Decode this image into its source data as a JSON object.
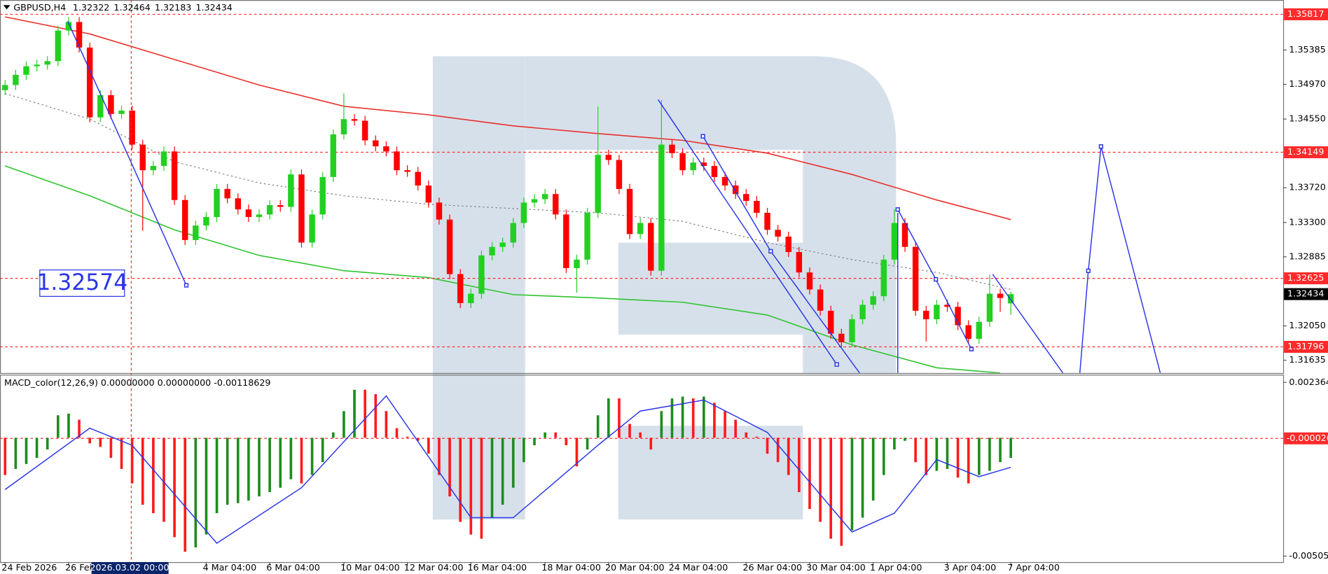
{
  "chart_data": [
    {
      "type": "candlestick",
      "title": "GBPUSD,H4",
      "categories": [
        "24 Feb 2026",
        null,
        null,
        null,
        null,
        null,
        "26 Feb 04:00",
        null,
        null,
        null,
        null,
        null,
        null,
        null,
        null,
        null,
        null,
        null,
        null,
        "4 Mar 04:00",
        null,
        null,
        null,
        null,
        null,
        "6 Mar 04:00",
        null,
        null,
        null,
        null,
        null,
        null,
        "10 Mar 04:00",
        null,
        null,
        null,
        null,
        null,
        "12 Mar 04:00",
        null,
        null,
        null,
        null,
        null,
        "16 Mar 04:00",
        null,
        null,
        null,
        null,
        null,
        null,
        "18 Mar 04:00",
        null,
        null,
        null,
        null,
        null,
        "20 Mar 04:00",
        null,
        null,
        null,
        null,
        null,
        "24 Mar 04:00",
        null,
        null,
        null,
        null,
        null,
        null,
        "26 Mar 04:00",
        null,
        null,
        null,
        null,
        null,
        "30 Mar 04:00",
        null,
        null,
        null,
        null,
        null,
        "1 Apr 04:00",
        null,
        null,
        null,
        null,
        null,
        null,
        "3 Apr 04:00",
        null,
        null,
        null,
        null,
        null,
        "7 Apr 04:00"
      ],
      "open": [
        1.349,
        1.34962,
        1.35086,
        1.35189,
        1.35209,
        1.35251,
        1.35621,
        1.35724,
        1.35415,
        1.34571,
        1.34839,
        1.34612,
        1.34653,
        1.34241,
        1.33932,
        1.33984,
        1.34159,
        1.33572,
        1.33088,
        1.33263,
        1.33366,
        1.33706,
        1.33592,
        1.33458,
        1.33366,
        1.33397,
        1.3351,
        1.33489,
        1.33881,
        1.33057,
        1.33397,
        1.3385,
        1.34365,
        1.3455,
        1.3453,
        1.34293,
        1.34221,
        1.34159,
        1.33932,
        1.33912,
        1.33747,
        1.33541,
        1.33335,
        1.32676,
        1.32325,
        1.32439,
        1.32902,
        1.33005,
        1.33057,
        1.33294,
        1.33541,
        1.33582,
        1.33644,
        1.33397,
        1.32748,
        1.32851,
        1.33417,
        1.34118,
        1.34056,
        1.33706,
        1.3316,
        1.33294,
        1.32717,
        1.34241,
        1.34138,
        1.33932,
        1.34025,
        1.33984,
        1.3385,
        1.33747,
        1.33644,
        1.33561,
        1.33417,
        1.33211,
        1.33129,
        1.32943,
        1.32696,
        1.3249,
        1.32233,
        1.31955,
        1.31852,
        1.3213,
        1.32305,
        1.32408,
        1.32851,
        1.33294,
        1.33005,
        1.32233,
        1.3213,
        1.32305,
        1.3228,
        1.32058,
        1.31893,
        1.32099,
        1.32439,
        1.32322
      ],
      "high": [
        1.35022,
        1.35146,
        1.35249,
        1.35269,
        1.35311,
        1.35681,
        1.35784,
        1.35784,
        1.35475,
        1.34899,
        1.34899,
        1.34713,
        1.34713,
        1.34301,
        1.34044,
        1.34219,
        1.34219,
        1.33632,
        1.33323,
        1.33426,
        1.33766,
        1.33766,
        1.33652,
        1.33518,
        1.33457,
        1.3357,
        1.3357,
        1.33941,
        1.33941,
        1.33457,
        1.3391,
        1.34425,
        1.3486,
        1.3461,
        1.3459,
        1.34353,
        1.34281,
        1.34219,
        1.33992,
        1.33972,
        1.33807,
        1.33601,
        1.33395,
        1.32736,
        1.32499,
        1.32962,
        1.33065,
        1.33117,
        1.33354,
        1.33601,
        1.33642,
        1.33704,
        1.33704,
        1.33457,
        1.32911,
        1.33477,
        1.347,
        1.34178,
        1.34116,
        1.33766,
        1.33354,
        1.33354,
        1.3478,
        1.34301,
        1.34198,
        1.34085,
        1.34085,
        1.34044,
        1.3391,
        1.33807,
        1.33704,
        1.33621,
        1.33477,
        1.33271,
        1.33189,
        1.33003,
        1.32756,
        1.3255,
        1.32293,
        1.32015,
        1.3219,
        1.32365,
        1.32468,
        1.32911,
        1.3346,
        1.33354,
        1.33065,
        1.32293,
        1.32365,
        1.32365,
        1.3234,
        1.32118,
        1.32159,
        1.3267,
        1.32499,
        1.32464
      ],
      "low": [
        1.3484,
        1.34902,
        1.35026,
        1.35129,
        1.35149,
        1.35191,
        1.35561,
        1.35355,
        1.34511,
        1.34511,
        1.34552,
        1.34552,
        1.34181,
        1.332,
        1.33872,
        1.33924,
        1.33512,
        1.33028,
        1.33028,
        1.33203,
        1.33306,
        1.33532,
        1.33398,
        1.33306,
        1.33306,
        1.33337,
        1.33429,
        1.33429,
        1.32997,
        1.32997,
        1.33337,
        1.3379,
        1.34305,
        1.3447,
        1.34233,
        1.34161,
        1.34099,
        1.33872,
        1.33852,
        1.33687,
        1.33481,
        1.33275,
        1.32616,
        1.32265,
        1.32265,
        1.32379,
        1.32842,
        1.32945,
        1.32997,
        1.33234,
        1.33481,
        1.33522,
        1.33337,
        1.32688,
        1.3245,
        1.32791,
        1.33357,
        1.33996,
        1.33646,
        1.331,
        1.331,
        1.32657,
        1.32657,
        1.34078,
        1.33872,
        1.33872,
        1.33924,
        1.3379,
        1.33687,
        1.33584,
        1.33501,
        1.33357,
        1.33151,
        1.33069,
        1.32883,
        1.32636,
        1.3243,
        1.32173,
        1.31895,
        1.31792,
        1.31792,
        1.3207,
        1.32245,
        1.32348,
        1.32791,
        1.32945,
        1.32173,
        1.3186,
        1.3207,
        1.3222,
        1.31998,
        1.31833,
        1.31833,
        1.32039,
        1.3222,
        1.32183
      ],
      "close": [
        1.34962,
        1.35086,
        1.35189,
        1.35209,
        1.35251,
        1.35621,
        1.35724,
        1.35415,
        1.34571,
        1.34839,
        1.34612,
        1.34653,
        1.34241,
        1.33932,
        1.33984,
        1.34159,
        1.33572,
        1.33088,
        1.33263,
        1.33366,
        1.33706,
        1.33592,
        1.33458,
        1.33366,
        1.33397,
        1.3351,
        1.33489,
        1.33881,
        1.33057,
        1.33397,
        1.3385,
        1.34365,
        1.3455,
        1.3453,
        1.34293,
        1.34221,
        1.34159,
        1.33932,
        1.33912,
        1.33747,
        1.33541,
        1.33335,
        1.32676,
        1.32325,
        1.32439,
        1.32902,
        1.33005,
        1.33057,
        1.33294,
        1.33541,
        1.33582,
        1.33644,
        1.33397,
        1.32748,
        1.32851,
        1.33417,
        1.34118,
        1.34056,
        1.33706,
        1.3316,
        1.33294,
        1.32717,
        1.34241,
        1.34138,
        1.33932,
        1.34025,
        1.33984,
        1.3385,
        1.33747,
        1.33644,
        1.33561,
        1.33417,
        1.33211,
        1.33129,
        1.32943,
        1.32696,
        1.3249,
        1.32233,
        1.31955,
        1.31852,
        1.3213,
        1.32305,
        1.32408,
        1.32851,
        1.33294,
        1.33005,
        1.32233,
        1.3213,
        1.32305,
        1.3228,
        1.32058,
        1.31893,
        1.32099,
        1.32439,
        1.32387,
        1.32434
      ],
      "up_color": "#22d022",
      "down_color": "#ff0000",
      "ylim": [
        1.3148,
        1.3599
      ],
      "yticks": [
        1.35385,
        {
          "value": 1.3497,
          "label": "1.34970"
        },
        {
          "value": 1.3455,
          "label": "1.34550"
        },
        {
          "value": 1.3372,
          "label": "1.33720"
        },
        {
          "value": 1.333,
          "label": "1.33300"
        },
        1.32885,
        {
          "value": 1.3205,
          "label": "1.32050"
        },
        1.31635
      ],
      "levels": [
        1.35817,
        1.34149,
        1.32625,
        1.31796
      ],
      "level_color": "#ff2a2a",
      "overlays": [
        {
          "color": "#e8302a",
          "x": [
            0,
            8,
            16,
            24,
            32,
            40,
            48,
            56,
            64,
            72,
            80,
            88,
            95
          ],
          "values": [
            1.35786,
            1.3558,
            1.35271,
            1.34962,
            1.34705,
            1.34602,
            1.34468,
            1.34375,
            1.34293,
            1.34138,
            1.33881,
            1.33572,
            1.33335
          ]
        },
        {
          "color": "#2ec42e",
          "x": [
            0,
            8,
            16,
            24,
            32,
            40,
            48,
            56,
            64,
            72,
            80,
            88,
            94
          ],
          "values": [
            1.33984,
            1.33623,
            1.33211,
            1.32902,
            1.32717,
            1.32634,
            1.32428,
            1.32387,
            1.32336,
            1.32181,
            1.31821,
            1.31543,
            1.31481
          ]
        },
        {
          "color": "#808080",
          "dotted": true,
          "x": [
            0,
            8,
            16,
            24,
            32,
            40,
            48,
            56,
            64,
            72,
            80,
            88,
            95
          ],
          "values": [
            1.34859,
            1.3455,
            1.34035,
            1.33778,
            1.33623,
            1.3352,
            1.33469,
            1.33417,
            1.33314,
            1.33057,
            1.32851,
            1.32696,
            1.3249
          ]
        }
      ],
      "annotation": "1.32574",
      "crosshair_label": "2026.03.02 00:00"
    },
    {
      "type": "macd",
      "title": "MACD_color(12,26,9) 0.00000000 0.00000000 -0.00118629",
      "values": [
        -0.00159,
        -0.00133,
        -0.00112,
        -0.00086,
        -0.0005,
        0.00096,
        0.00103,
        0.00077,
        -0.00024,
        -0.00039,
        -0.00086,
        -0.00133,
        -0.00195,
        -0.00286,
        -0.00322,
        -0.00359,
        -0.00424,
        -0.00486,
        -0.00468,
        -0.00413,
        -0.00322,
        -0.00286,
        -0.00279,
        -0.00268,
        -0.0025,
        -0.00232,
        -0.00213,
        -0.00177,
        -0.00195,
        -0.00159,
        -0.00104,
        0.00023,
        0.00114,
        0.00205,
        0.00205,
        0.00186,
        0.00114,
        0.00041,
        5e-05,
        -0.00013,
        -0.00068,
        -0.00159,
        -0.0025,
        -0.00359,
        -0.00413,
        -0.00431,
        -0.00341,
        -0.00286,
        -0.00213,
        -0.00104,
        -0.00032,
        0.00023,
        0.00023,
        -0.00032,
        -0.00122,
        -0.0005,
        0.00096,
        0.00168,
        0.00168,
        0.00059,
        0.00023,
        -0.0005,
        0.00114,
        0.00168,
        0.00176,
        0.00168,
        0.00176,
        0.0015,
        0.00114,
        0.00077,
        0.00023,
        5e-05,
        -0.00068,
        -0.00104,
        -0.00159,
        -0.00232,
        -0.00304,
        -0.00359,
        -0.00431,
        -0.00461,
        -0.00395,
        -0.00341,
        -0.00268,
        -0.00159,
        -0.0005,
        -0.00013,
        -0.00104,
        -0.00159,
        -0.00141,
        -0.00133,
        -0.0017,
        -0.00195,
        -0.00159,
        -0.00141,
        -0.00104,
        -0.00086
      ],
      "rising_color": "#1e8c1e",
      "falling_color": "#ff1a1a",
      "signal": {
        "color": "#2a35e6",
        "x": [
          0,
          8,
          12,
          20,
          28,
          36,
          44,
          48,
          56,
          60,
          66,
          72,
          80,
          84,
          88,
          92,
          95
        ],
        "values": [
          -0.00221,
          0.00041,
          -0.00032,
          -0.0045,
          -0.00213,
          0.00179,
          -0.00341,
          -0.00341,
          -0.00032,
          0.00114,
          0.00161,
          0.00023,
          -0.00402,
          -0.00322,
          -0.00093,
          -0.00166,
          -0.00126
        ]
      },
      "ylim": [
        -0.0053052,
        0.0026552
      ],
      "yticks": [
        0.0023644,
        -0.0050508
      ],
      "levels": [
        -2.6e-05
      ],
      "level_color": "#ff2a2a"
    }
  ]
}
